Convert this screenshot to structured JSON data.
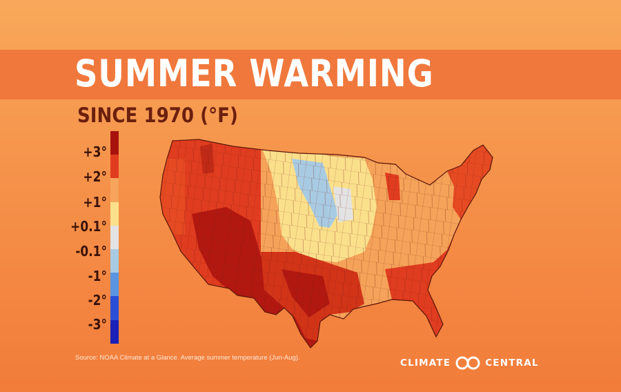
{
  "title": "SUMMER WARMING",
  "subtitle": "SINCE 1970 (°F)",
  "legend": {
    "labels": [
      "+3°",
      "+2°",
      "+1°",
      "+0.1°",
      "-0.1°",
      "-1°",
      "-2°",
      "-3°"
    ],
    "colors": [
      "#a8120c",
      "#e03c1f",
      "#f7a45c",
      "#fbe08c",
      "#e3e3e3",
      "#a8cbe3",
      "#5b94e0",
      "#2a4fd6",
      "#1a20b8"
    ]
  },
  "source": "Source: NOAA Climate at a Glance. Average summer temperature (Jun-Aug).",
  "brand": {
    "left": "CLIMATE",
    "right": "CENTRAL"
  }
}
